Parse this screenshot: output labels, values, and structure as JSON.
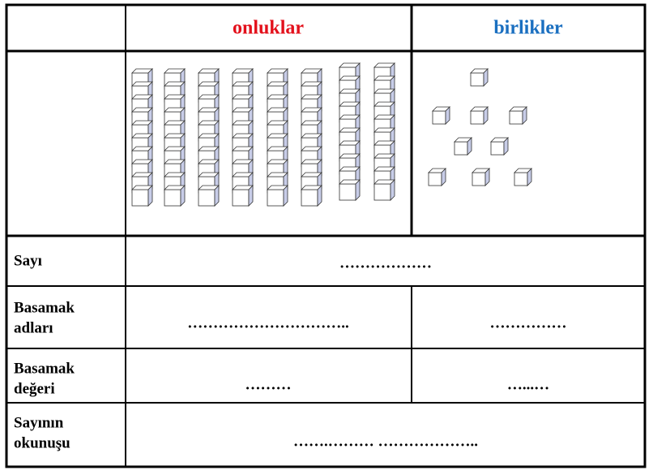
{
  "header": {
    "tens": "onluklar",
    "ones": "birlikler"
  },
  "rows": [
    {
      "label": [
        "Sayı"
      ],
      "cells": [
        "………………"
      ]
    },
    {
      "label": [
        "Basamak",
        "adları"
      ],
      "cells": [
        "…………………………..",
        "……………"
      ]
    },
    {
      "label": [
        "Basamak",
        "değeri"
      ],
      "cells": [
        "………",
        "…...…"
      ]
    },
    {
      "label": [
        "Sayının",
        "okunuşu"
      ],
      "cells": [
        "…….……… ……………….."
      ]
    }
  ]
}
